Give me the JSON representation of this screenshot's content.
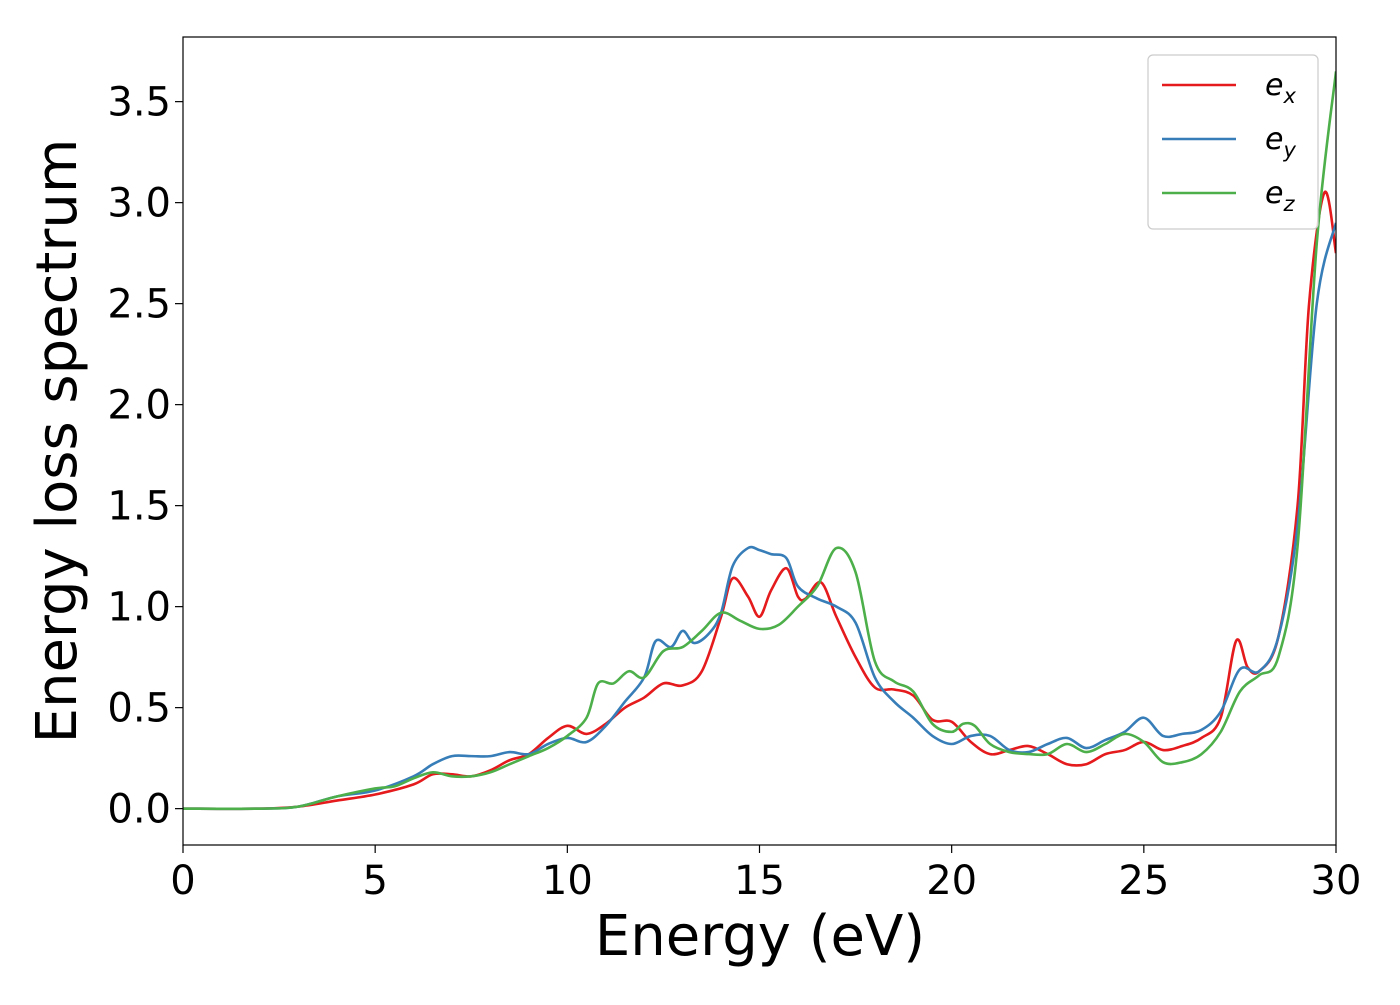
{
  "chart_data": {
    "type": "line",
    "title": "",
    "xlabel": "Energy (eV)",
    "ylabel": "Energy loss spectrum",
    "xlim": [
      0,
      30
    ],
    "ylim": [
      -0.18,
      3.82
    ],
    "xticks": [
      0,
      5,
      10,
      15,
      20,
      25,
      30
    ],
    "xtick_labels": [
      "0",
      "5",
      "10",
      "15",
      "20",
      "25",
      "30"
    ],
    "yticks": [
      0.0,
      0.5,
      1.0,
      1.5,
      2.0,
      2.5,
      3.0,
      3.5
    ],
    "ytick_labels": [
      "0.0",
      "0.5",
      "1.0",
      "1.5",
      "2.0",
      "2.5",
      "3.0",
      "3.5"
    ],
    "grid": false,
    "legend_position": "top-right",
    "series": [
      {
        "name": "e_x",
        "legend_base": "e",
        "legend_sub": "x",
        "color": "#e41a1c",
        "x": [
          0,
          2,
          3,
          4,
          5,
          6,
          6.5,
          7,
          7.5,
          8,
          8.5,
          9,
          9.5,
          10,
          10.5,
          11,
          11.5,
          12,
          12.5,
          13,
          13.5,
          14,
          14.3,
          14.7,
          15,
          15.3,
          15.7,
          16,
          16.2,
          16.6,
          17,
          17.5,
          18,
          18.5,
          19,
          19.5,
          20,
          20.5,
          21,
          21.5,
          22,
          22.5,
          23,
          23.5,
          24,
          24.5,
          25,
          25.5,
          26,
          26.5,
          27,
          27.4,
          27.7,
          28,
          28.5,
          29,
          29.3,
          29.7,
          30
        ],
        "values": [
          0.0,
          0.0,
          0.01,
          0.04,
          0.07,
          0.12,
          0.17,
          0.17,
          0.16,
          0.19,
          0.24,
          0.27,
          0.35,
          0.41,
          0.37,
          0.42,
          0.5,
          0.55,
          0.62,
          0.61,
          0.68,
          0.95,
          1.14,
          1.05,
          0.95,
          1.08,
          1.19,
          1.05,
          1.04,
          1.12,
          0.95,
          0.75,
          0.6,
          0.59,
          0.56,
          0.44,
          0.43,
          0.33,
          0.27,
          0.29,
          0.31,
          0.27,
          0.22,
          0.22,
          0.27,
          0.29,
          0.33,
          0.29,
          0.31,
          0.35,
          0.45,
          0.83,
          0.7,
          0.68,
          0.85,
          1.5,
          2.5,
          3.05,
          2.75
        ]
      },
      {
        "name": "e_y",
        "legend_base": "e",
        "legend_sub": "y",
        "color": "#377eb8",
        "x": [
          0,
          2,
          3,
          4,
          5,
          6,
          6.5,
          7,
          7.5,
          8,
          8.5,
          9,
          9.5,
          10,
          10.5,
          11,
          11.5,
          12,
          12.3,
          12.7,
          13,
          13.3,
          13.7,
          14,
          14.3,
          14.7,
          15,
          15.3,
          15.7,
          16,
          16.5,
          17,
          17.5,
          18,
          18.5,
          19,
          19.5,
          20,
          20.5,
          21,
          21.5,
          22,
          22.5,
          23,
          23.5,
          24,
          24.5,
          25,
          25.5,
          26,
          26.5,
          27,
          27.5,
          28,
          28.5,
          29,
          29.5,
          30
        ],
        "values": [
          0.0,
          0.0,
          0.01,
          0.06,
          0.09,
          0.16,
          0.22,
          0.26,
          0.26,
          0.26,
          0.28,
          0.27,
          0.32,
          0.35,
          0.33,
          0.41,
          0.53,
          0.65,
          0.83,
          0.8,
          0.88,
          0.82,
          0.87,
          0.97,
          1.2,
          1.29,
          1.28,
          1.26,
          1.24,
          1.1,
          1.04,
          1.0,
          0.92,
          0.65,
          0.53,
          0.45,
          0.36,
          0.32,
          0.36,
          0.36,
          0.29,
          0.28,
          0.32,
          0.35,
          0.3,
          0.34,
          0.38,
          0.45,
          0.36,
          0.37,
          0.39,
          0.48,
          0.69,
          0.68,
          0.85,
          1.4,
          2.5,
          2.9
        ]
      },
      {
        "name": "e_z",
        "legend_base": "e",
        "legend_sub": "z",
        "color": "#4daf4a",
        "x": [
          0,
          2,
          3,
          4,
          5,
          5.5,
          6,
          6.5,
          7,
          7.5,
          8,
          8.5,
          9,
          9.5,
          10,
          10.5,
          10.8,
          11.2,
          11.6,
          12,
          12.5,
          13,
          13.5,
          14,
          14.5,
          15,
          15.5,
          16,
          16.5,
          17,
          17.5,
          18,
          18.5,
          19,
          19.5,
          20,
          20.3,
          20.6,
          21,
          21.5,
          22,
          22.5,
          23,
          23.5,
          24,
          24.5,
          25,
          25.5,
          26,
          26.5,
          27,
          27.5,
          28,
          28.5,
          29,
          29.5,
          30
        ],
        "values": [
          0.0,
          0.0,
          0.01,
          0.06,
          0.1,
          0.11,
          0.15,
          0.18,
          0.16,
          0.16,
          0.18,
          0.22,
          0.26,
          0.3,
          0.36,
          0.45,
          0.62,
          0.62,
          0.68,
          0.65,
          0.78,
          0.8,
          0.88,
          0.97,
          0.93,
          0.89,
          0.91,
          1.0,
          1.1,
          1.29,
          1.17,
          0.73,
          0.63,
          0.58,
          0.42,
          0.38,
          0.42,
          0.41,
          0.32,
          0.28,
          0.27,
          0.27,
          0.32,
          0.28,
          0.32,
          0.37,
          0.33,
          0.23,
          0.23,
          0.27,
          0.38,
          0.58,
          0.66,
          0.75,
          1.3,
          2.8,
          3.65
        ]
      }
    ]
  }
}
